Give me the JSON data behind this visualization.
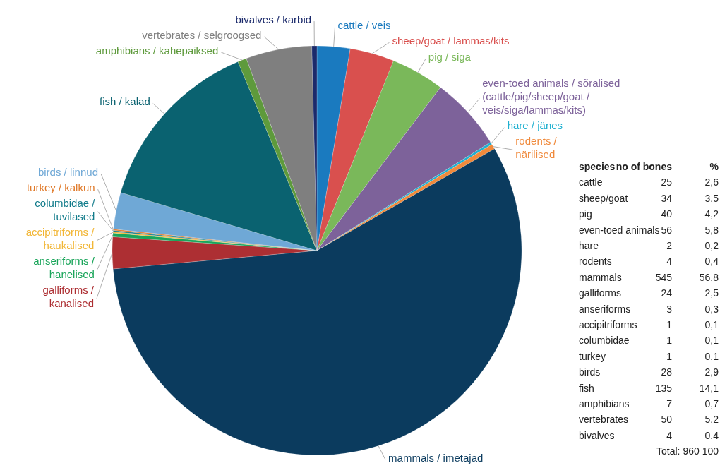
{
  "chart_data": {
    "type": "pie",
    "categories": [
      "cattle / veis",
      "sheep/goat / lammas/kits",
      "pig / siga",
      "even-toed animals / sõralised\n(cattle/pig/sheep/goat /\nveis/siga/lammas/kits)",
      "hare / jänes",
      "rodents /\nnärilised",
      "mammals / imetajad",
      "galliforms /\nkanalised",
      "anseriforms /\nhanelised",
      "accipitriforms /\nhaukalised",
      "columbidae /\ntuvilased",
      "turkey / kalkun",
      "birds / linnud",
      "fish / kalad",
      "amphibians / kahepaiksed",
      "vertebrates / selgroogsed",
      "bivalves / karbid"
    ],
    "values": [
      2.6,
      3.5,
      4.2,
      5.8,
      0.2,
      0.4,
      56.8,
      2.5,
      0.3,
      0.1,
      0.1,
      0.1,
      2.9,
      14.1,
      0.7,
      5.2,
      0.4
    ],
    "colors": [
      "#1a7abf",
      "#d9504e",
      "#7ab85a",
      "#7d629a",
      "#1fb0d0",
      "#f08a3c",
      "#0b3b5e",
      "#ad2f33",
      "#1aa55a",
      "#f2b635",
      "#117b8a",
      "#e07a2a",
      "#6fa8d6",
      "#0a6270",
      "#5e9a3c",
      "#7f7f7f",
      "#1b2a6b"
    ],
    "annotations": [
      "species",
      "no of bones",
      "%",
      "cattle",
      "25",
      "2,6",
      "sheep/goat",
      "34",
      "3,5",
      "pig",
      "40",
      "4,2",
      "even-toed animals",
      "56",
      "5,8",
      "hare",
      "2",
      "0,2",
      "rodents",
      "4",
      "0,4",
      "mammals",
      "545",
      "56,8",
      "galliforms",
      "24",
      "2,5",
      "anseriforms",
      "3",
      "0,3",
      "accipitriforms",
      "1",
      "0,1",
      "columbidae",
      "1",
      "0,1",
      "turkey",
      "1",
      "0,1",
      "birds",
      "28",
      "2,9",
      "fish",
      "135",
      "14,1",
      "amphibians",
      "7",
      "0,7",
      "vertebrates",
      "50",
      "5,2",
      "bivalves",
      "4",
      "0,4",
      "Total: 960 100"
    ]
  }
}
